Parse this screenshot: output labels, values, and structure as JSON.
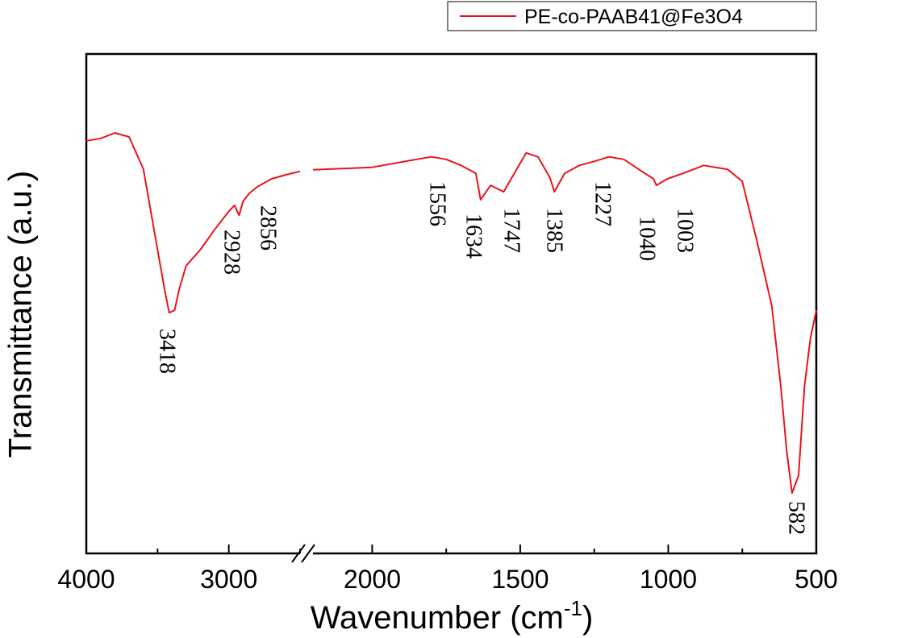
{
  "chart_data": {
    "type": "line",
    "xlabel": {
      "text": "Wavenumber (cm",
      "sup": "-1",
      "tail": ")"
    },
    "ylabel": "Transmittance (a.u.)",
    "xlim": [
      4000,
      500
    ],
    "xbreak": [
      2500,
      2200
    ],
    "ylim": [
      0,
      100
    ],
    "xticks": [
      4000,
      3000,
      2000,
      1500,
      1000,
      500
    ],
    "xminorticks": [
      3500,
      2500,
      1750,
      1250,
      750
    ],
    "series": [
      {
        "name": "PE-co-PAAB41@Fe3O4",
        "color": "#e8141b",
        "x": [
          4000,
          3900,
          3800,
          3700,
          3650,
          3600,
          3550,
          3500,
          3450,
          3418,
          3380,
          3350,
          3300,
          3200,
          3100,
          3000,
          2960,
          2928,
          2900,
          2856,
          2800,
          2700,
          2600,
          2500,
          2350,
          2200,
          2000,
          1850,
          1800,
          1750,
          1700,
          1650,
          1634,
          1600,
          1556,
          1520,
          1480,
          1440,
          1400,
          1385,
          1350,
          1300,
          1250,
          1200,
          1150,
          1100,
          1050,
          1040,
          1003,
          950,
          880,
          800,
          750,
          700,
          650,
          620,
          600,
          582,
          560,
          540,
          520,
          500
        ],
        "values": [
          82.6,
          83.1,
          84.2,
          83.4,
          80.2,
          77.0,
          68.9,
          60.8,
          52.7,
          48.2,
          48.7,
          52.7,
          57.6,
          60.8,
          64.8,
          68.5,
          69.7,
          67.7,
          70.5,
          72.1,
          73.4,
          75.0,
          75.8,
          76.5,
          null,
          76.8,
          77.3,
          78.9,
          79.4,
          78.9,
          77.7,
          76.1,
          70.8,
          73.7,
          72.4,
          76.1,
          80.2,
          79.4,
          75.3,
          72.4,
          76.1,
          77.7,
          78.5,
          79.4,
          78.9,
          76.9,
          75.0,
          73.7,
          75.0,
          76.1,
          77.7,
          76.9,
          74.5,
          62.4,
          49.5,
          33.4,
          20.5,
          12.1,
          15.6,
          33.4,
          43.1,
          48.7
        ]
      }
    ],
    "annotations": [
      "3418",
      "2928",
      "2856",
      "1556",
      "1634",
      "1747",
      "1385",
      "1227",
      "1040",
      "1003",
      "582"
    ]
  }
}
